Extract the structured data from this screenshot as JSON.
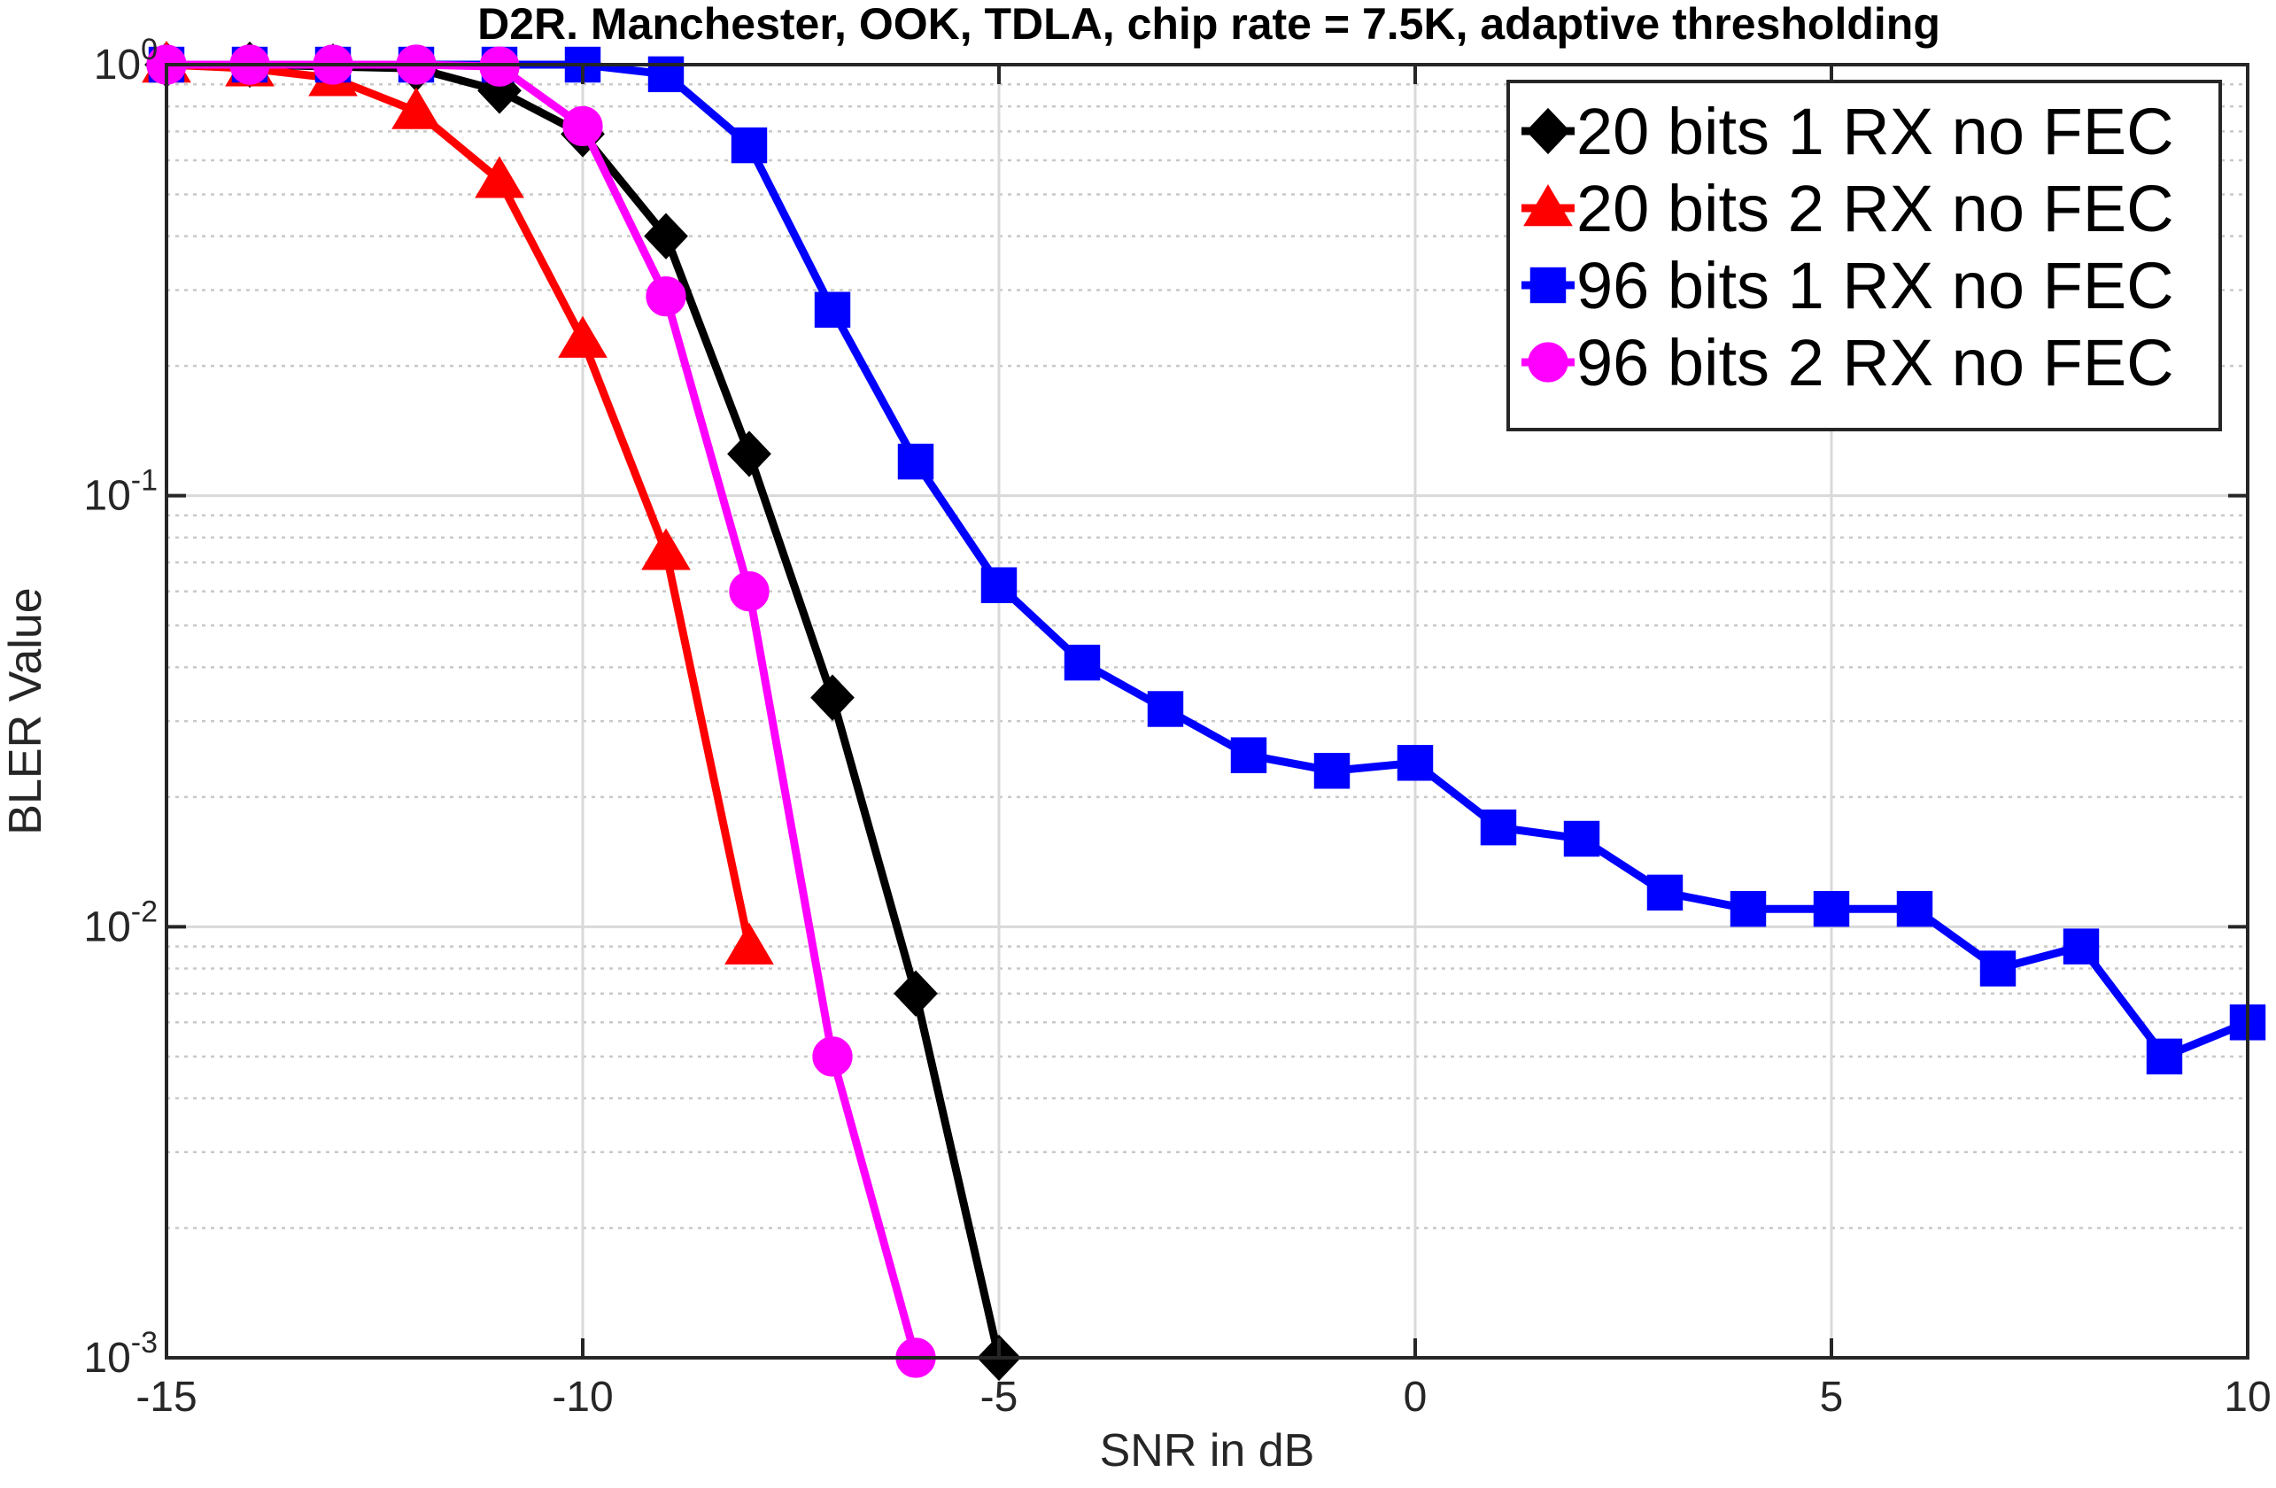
{
  "chart_data": {
    "type": "line",
    "title": "D2R. Manchester, OOK, TDLA, chip rate = 7.5K, adaptive thresholding",
    "xlabel": "SNR in dB",
    "ylabel": "BLER Value",
    "xlim": [
      -15,
      10
    ],
    "ylim": [
      0.001,
      1
    ],
    "yscale": "log",
    "grid": true,
    "legend_position": "top-right",
    "x_ticks": [
      -15,
      -10,
      -5,
      0,
      5,
      10
    ],
    "x_tick_labels": [
      "-15",
      "-10",
      "-5",
      "0",
      "5",
      "10"
    ],
    "y_ticks": [
      {
        "value": 1,
        "base": "10",
        "exp": "0"
      },
      {
        "value": 0.1,
        "base": "10",
        "exp": "-1"
      },
      {
        "value": 0.01,
        "base": "10",
        "exp": "-2"
      },
      {
        "value": 0.001,
        "base": "10",
        "exp": "-3"
      }
    ],
    "series": [
      {
        "name": "20 bits 1 RX no FEC",
        "color": "#000000",
        "marker": "diamond",
        "x": [
          -15,
          -14,
          -13,
          -12,
          -11,
          -10,
          -9,
          -8,
          -7,
          -6,
          -5
        ],
        "y": [
          1,
          1,
          0.99,
          0.98,
          0.87,
          0.69,
          0.4,
          0.125,
          0.034,
          0.007,
          0.001
        ]
      },
      {
        "name": "20 bits 2 RX no FEC",
        "color": "#ff0000",
        "marker": "triangle",
        "x": [
          -15,
          -14,
          -13,
          -12,
          -11,
          -10,
          -9,
          -8
        ],
        "y": [
          1,
          0.98,
          0.93,
          0.78,
          0.54,
          0.23,
          0.074,
          0.009
        ]
      },
      {
        "name": "96 bits 1 RX no FEC",
        "color": "#0000ff",
        "marker": "square",
        "x": [
          -15,
          -14,
          -13,
          -12,
          -11,
          -10,
          -9,
          -8,
          -7,
          -6,
          -5,
          -4,
          -3,
          -2,
          -1,
          0,
          1,
          2,
          3,
          4,
          5,
          6,
          7,
          8,
          9,
          10
        ],
        "y": [
          1,
          1,
          1,
          1,
          1,
          1,
          0.95,
          0.65,
          0.27,
          0.12,
          0.062,
          0.041,
          0.032,
          0.025,
          0.023,
          0.024,
          0.017,
          0.016,
          0.012,
          0.011,
          0.011,
          0.011,
          0.008,
          0.009,
          0.005,
          0.006
        ]
      },
      {
        "name": "96 bits 2 RX no FEC",
        "color": "#ff00ff",
        "marker": "circle",
        "x": [
          -15,
          -14,
          -13,
          -12,
          -11,
          -10,
          -9,
          -8,
          -7,
          -6
        ],
        "y": [
          1,
          1,
          1,
          1,
          0.99,
          0.72,
          0.29,
          0.06,
          0.005,
          0.001
        ]
      }
    ]
  }
}
